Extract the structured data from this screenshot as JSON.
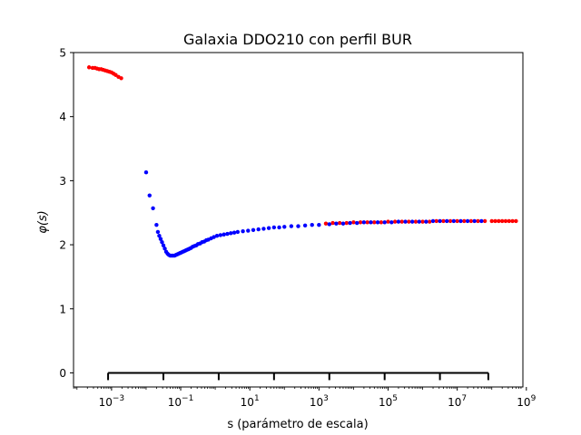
{
  "chart_data": {
    "type": "scatter",
    "title": "Galaxia DDO210 con perfil BUR",
    "xlabel": "s (parámetro de escala)",
    "ylabel": "φ(s)",
    "xscale": "log",
    "xlim_log10": [
      -4.1,
      8.9
    ],
    "ylim": [
      -0.22,
      5.0
    ],
    "x_ticks": [
      {
        "exp": -3,
        "base": "10",
        "sup": "−3"
      },
      {
        "exp": -1,
        "base": "10",
        "sup": "−1"
      },
      {
        "exp": 1,
        "base": "10",
        "sup": "1"
      },
      {
        "exp": 3,
        "base": "10",
        "sup": "3"
      },
      {
        "exp": 5,
        "base": "10",
        "sup": "5"
      },
      {
        "exp": 7,
        "base": "10",
        "sup": "7"
      },
      {
        "exp": 9,
        "base": "10",
        "sup": "9"
      }
    ],
    "y_ticks": [
      {
        "value": 0,
        "label": "0"
      },
      {
        "value": 1,
        "label": "1"
      },
      {
        "value": 2,
        "label": "2"
      },
      {
        "value": 3,
        "label": "3"
      },
      {
        "value": 4,
        "label": "4"
      },
      {
        "value": 5,
        "label": "5"
      }
    ],
    "series": [
      {
        "color": "#ff0000",
        "points": [
          [
            -3.65,
            4.77
          ],
          [
            -3.55,
            4.76
          ],
          [
            -3.48,
            4.76
          ],
          [
            -3.42,
            4.75
          ],
          [
            -3.36,
            4.74
          ],
          [
            -3.3,
            4.74
          ],
          [
            -3.24,
            4.73
          ],
          [
            -3.18,
            4.72
          ],
          [
            -3.12,
            4.71
          ],
          [
            -3.06,
            4.7
          ],
          [
            -3.0,
            4.69
          ],
          [
            -2.94,
            4.67
          ],
          [
            -2.88,
            4.65
          ],
          [
            -2.8,
            4.62
          ],
          [
            -2.72,
            4.6
          ],
          [
            3.2,
            2.33
          ],
          [
            3.4,
            2.34
          ],
          [
            3.6,
            2.34
          ],
          [
            3.8,
            2.34
          ],
          [
            4.0,
            2.35
          ],
          [
            4.2,
            2.35
          ],
          [
            4.4,
            2.35
          ],
          [
            4.6,
            2.35
          ],
          [
            4.8,
            2.35
          ],
          [
            5.0,
            2.36
          ],
          [
            5.2,
            2.36
          ],
          [
            5.4,
            2.36
          ],
          [
            5.6,
            2.36
          ],
          [
            5.8,
            2.36
          ],
          [
            6.0,
            2.36
          ],
          [
            6.2,
            2.36
          ],
          [
            6.4,
            2.37
          ],
          [
            6.6,
            2.37
          ],
          [
            6.8,
            2.37
          ],
          [
            7.0,
            2.37
          ],
          [
            7.2,
            2.37
          ],
          [
            7.4,
            2.37
          ],
          [
            7.6,
            2.37
          ],
          [
            7.8,
            2.37
          ],
          [
            8.0,
            2.37
          ],
          [
            8.1,
            2.37
          ],
          [
            8.2,
            2.37
          ],
          [
            8.3,
            2.37
          ],
          [
            8.4,
            2.37
          ],
          [
            8.5,
            2.37
          ],
          [
            8.6,
            2.37
          ],
          [
            8.7,
            2.37
          ]
        ]
      },
      {
        "color": "#0000ff",
        "points": [
          [
            -2.0,
            3.13
          ],
          [
            -1.9,
            2.77
          ],
          [
            -1.8,
            2.57
          ],
          [
            -1.7,
            2.31
          ],
          [
            -1.66,
            2.2
          ],
          [
            -1.62,
            2.14
          ],
          [
            -1.58,
            2.09
          ],
          [
            -1.54,
            2.04
          ],
          [
            -1.5,
            1.99
          ],
          [
            -1.46,
            1.94
          ],
          [
            -1.42,
            1.89
          ],
          [
            -1.38,
            1.86
          ],
          [
            -1.34,
            1.84
          ],
          [
            -1.3,
            1.83
          ],
          [
            -1.26,
            1.83
          ],
          [
            -1.22,
            1.83
          ],
          [
            -1.18,
            1.83
          ],
          [
            -1.14,
            1.84
          ],
          [
            -1.1,
            1.85
          ],
          [
            -1.06,
            1.86
          ],
          [
            -1.02,
            1.87
          ],
          [
            -0.98,
            1.88
          ],
          [
            -0.94,
            1.89
          ],
          [
            -0.9,
            1.9
          ],
          [
            -0.86,
            1.91
          ],
          [
            -0.82,
            1.92
          ],
          [
            -0.78,
            1.93
          ],
          [
            -0.74,
            1.94
          ],
          [
            -0.7,
            1.95
          ],
          [
            -0.65,
            1.97
          ],
          [
            -0.6,
            1.98
          ],
          [
            -0.55,
            1.99
          ],
          [
            -0.5,
            2.01
          ],
          [
            -0.44,
            2.02
          ],
          [
            -0.38,
            2.04
          ],
          [
            -0.32,
            2.05
          ],
          [
            -0.26,
            2.07
          ],
          [
            -0.2,
            2.08
          ],
          [
            -0.12,
            2.1
          ],
          [
            -0.04,
            2.12
          ],
          [
            0.05,
            2.14
          ],
          [
            0.15,
            2.15
          ],
          [
            0.25,
            2.16
          ],
          [
            0.35,
            2.17
          ],
          [
            0.45,
            2.18
          ],
          [
            0.55,
            2.19
          ],
          [
            0.65,
            2.2
          ],
          [
            0.8,
            2.21
          ],
          [
            0.95,
            2.22
          ],
          [
            1.1,
            2.23
          ],
          [
            1.25,
            2.24
          ],
          [
            1.4,
            2.25
          ],
          [
            1.55,
            2.26
          ],
          [
            1.7,
            2.27
          ],
          [
            1.85,
            2.27
          ],
          [
            2.0,
            2.28
          ],
          [
            2.2,
            2.29
          ],
          [
            2.4,
            2.29
          ],
          [
            2.6,
            2.3
          ],
          [
            2.8,
            2.31
          ],
          [
            3.0,
            2.31
          ],
          [
            3.3,
            2.32
          ],
          [
            3.5,
            2.33
          ],
          [
            3.7,
            2.33
          ],
          [
            3.9,
            2.34
          ],
          [
            4.1,
            2.34
          ],
          [
            4.3,
            2.35
          ],
          [
            4.5,
            2.35
          ],
          [
            4.7,
            2.35
          ],
          [
            4.9,
            2.35
          ],
          [
            5.1,
            2.35
          ],
          [
            5.3,
            2.36
          ],
          [
            5.5,
            2.36
          ],
          [
            5.7,
            2.36
          ],
          [
            5.9,
            2.36
          ],
          [
            6.1,
            2.36
          ],
          [
            6.3,
            2.37
          ],
          [
            6.5,
            2.37
          ],
          [
            6.7,
            2.37
          ],
          [
            6.9,
            2.37
          ],
          [
            7.1,
            2.37
          ],
          [
            7.3,
            2.37
          ],
          [
            7.5,
            2.37
          ],
          [
            7.7,
            2.37
          ]
        ]
      }
    ],
    "annotation_scale": {
      "y": 0,
      "ticks_log10": [
        -3.1,
        -1.5,
        0.1,
        1.7,
        3.3,
        4.9,
        6.5,
        7.9
      ]
    }
  }
}
